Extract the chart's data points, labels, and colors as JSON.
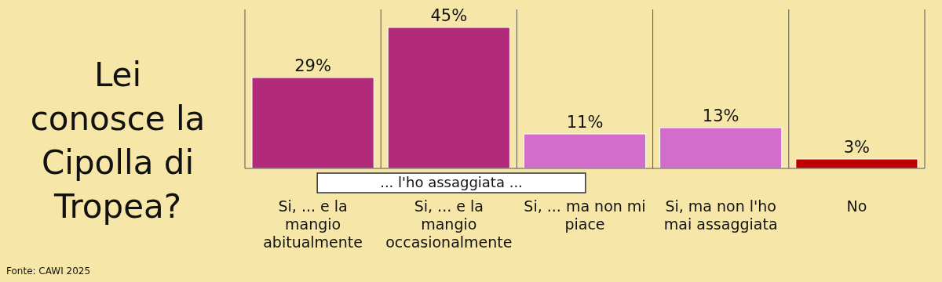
{
  "chart_data": {
    "type": "bar",
    "title": "Lei conosce la Cipolla di Tropea?",
    "categories": [
      "Si, ... e la mangio abitualmente",
      "Si, ... e la mangio occasionalmente",
      "Si, ... ma non mi piace",
      "Si, ma non l'ho mai assaggiata",
      "No"
    ],
    "values": [
      29,
      45,
      11,
      13,
      3
    ],
    "colors": [
      "#b22b7b",
      "#b22b7b",
      "#d36ccb",
      "#d36ccb",
      "#c00000"
    ],
    "value_labels": [
      "29%",
      "45%",
      "11%",
      "13%",
      "3%"
    ],
    "grid": "x",
    "annotations": [
      "... l'ho assaggiata ...",
      "Fonte: CAWI 2025"
    ]
  }
}
